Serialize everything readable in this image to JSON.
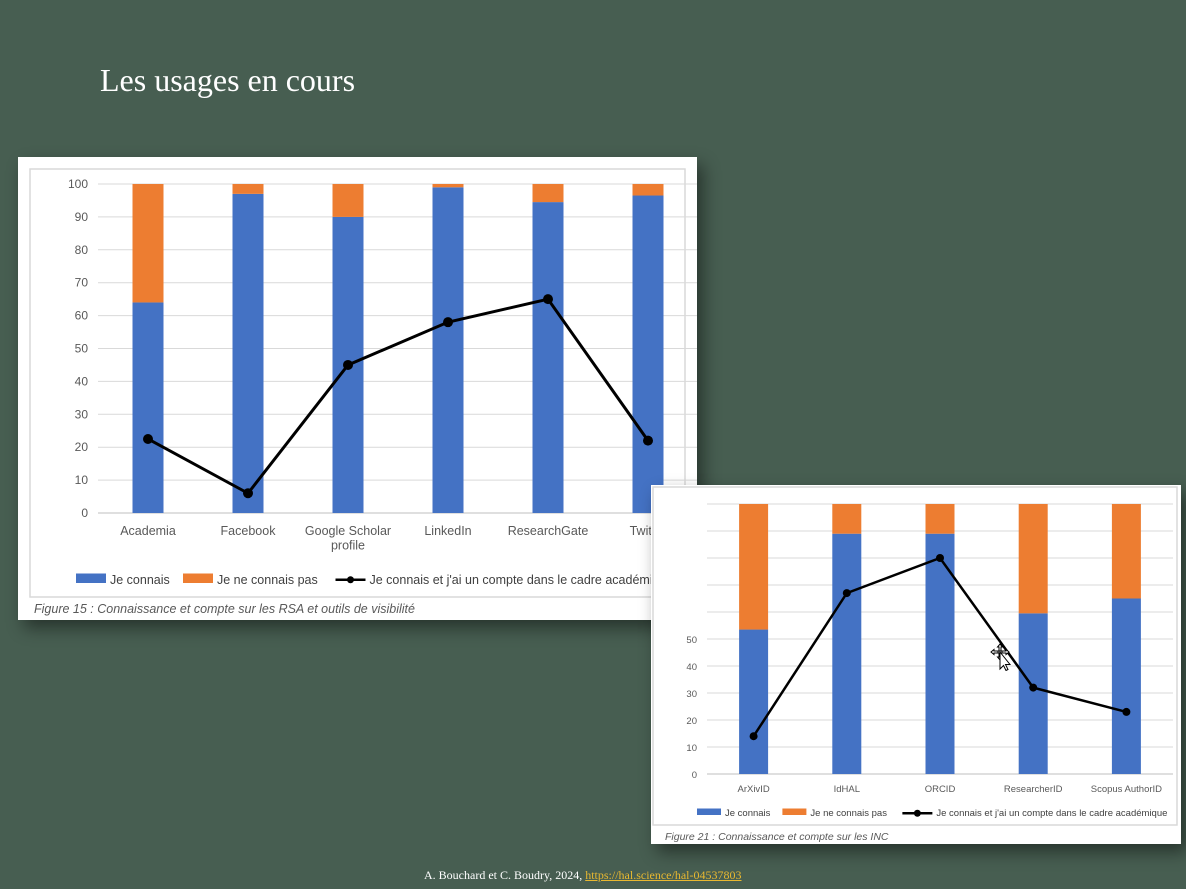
{
  "slide": {
    "title": "Les usages en cours"
  },
  "footer": {
    "text": "A. Bouchard et C. Boudry, 2024, ",
    "link": "https://hal.science/hal-04537803"
  },
  "colors": {
    "je_connais": "#4472c4",
    "je_ne_connais_pas": "#ed7d31",
    "compte": "#000000"
  },
  "figures": [
    {
      "caption": "Figure 15 : Connaissance et compte sur les RSA et outils de visibilité"
    },
    {
      "caption": "Figure 21 : Connaissance et compte sur les INC"
    }
  ],
  "chart_data": [
    {
      "type": "bar",
      "stacked": true,
      "categories": [
        "Academia",
        "Facebook",
        "Google Scholar profile",
        "LinkedIn",
        "ResearchGate",
        "Twitter"
      ],
      "series": [
        {
          "name": "Je connais",
          "kind": "bar",
          "color": "#4472c4",
          "values": [
            64,
            97,
            90,
            99,
            94.5,
            96.5
          ]
        },
        {
          "name": "Je ne connais pas",
          "kind": "bar",
          "color": "#ed7d31",
          "values": [
            36,
            3,
            10,
            1,
            5.5,
            3.5
          ]
        },
        {
          "name": "Je connais et j'ai un compte dans le cadre académique",
          "kind": "line",
          "color": "#000000",
          "values": [
            22.5,
            6,
            45,
            58,
            65,
            22
          ]
        }
      ],
      "ylim": [
        0,
        100
      ],
      "yticks": [
        0,
        10,
        20,
        30,
        40,
        50,
        60,
        70,
        80,
        90,
        100
      ],
      "grid": true,
      "legend_position": "bottom"
    },
    {
      "type": "bar",
      "stacked": true,
      "categories": [
        "ArXivID",
        "IdHAL",
        "ORCID",
        "ResearcherID",
        "Scopus AuthorID"
      ],
      "series": [
        {
          "name": "Je connais",
          "kind": "bar",
          "color": "#4472c4",
          "values": [
            53.5,
            89,
            89,
            59.5,
            65
          ]
        },
        {
          "name": "Je ne connais pas",
          "kind": "bar",
          "color": "#ed7d31",
          "values": [
            46.5,
            11,
            11,
            40.5,
            35
          ]
        },
        {
          "name": "Je connais et j'ai un compte dans le cadre académique",
          "kind": "line",
          "color": "#000000",
          "values": [
            14,
            67,
            80,
            32,
            23
          ]
        }
      ],
      "ylim": [
        0,
        100
      ],
      "yticks_visible": [
        0,
        10,
        20,
        30,
        40,
        50
      ],
      "grid": true,
      "legend_position": "bottom"
    }
  ]
}
